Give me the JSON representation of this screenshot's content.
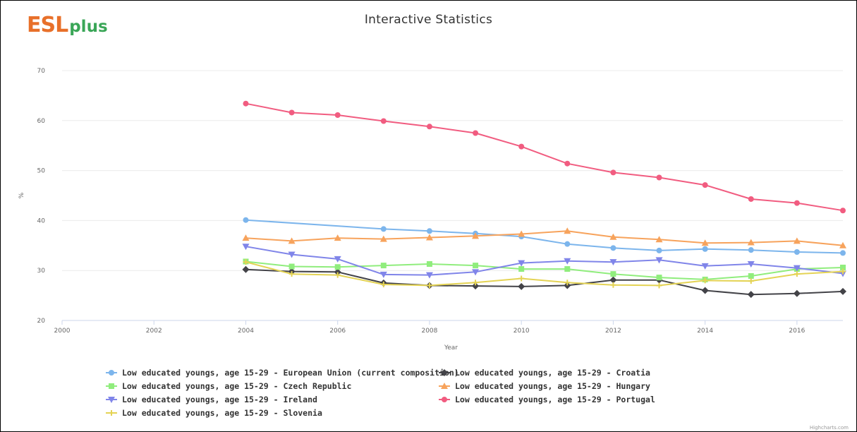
{
  "logo": {
    "main": "ESL",
    "sub": "plus"
  },
  "credits": "Highcharts.com",
  "chart_data": {
    "type": "line",
    "title": "Interactive Statistics",
    "xlabel": "Year",
    "ylabel": "%",
    "xlim": [
      2000,
      2017
    ],
    "ylim": [
      20,
      70
    ],
    "x_ticks": [
      "2000",
      "2002",
      "2004",
      "2006",
      "2008",
      "2010",
      "2012",
      "2014",
      "2016"
    ],
    "y_ticks": [
      "20",
      "30",
      "40",
      "50",
      "60",
      "70"
    ],
    "grid": true,
    "legend_position": "bottom",
    "x": [
      2004,
      2005,
      2006,
      2007,
      2008,
      2009,
      2010,
      2011,
      2012,
      2013,
      2014,
      2015,
      2016,
      2017
    ],
    "series": [
      {
        "name": "Low educated youngs, age 15-29 - European Union (current composition)",
        "color": "#7cb5ec",
        "marker": "circle",
        "values": [
          40.1,
          null,
          null,
          38.3,
          37.9,
          37.4,
          36.8,
          35.3,
          34.5,
          34.0,
          34.3,
          34.1,
          33.7,
          33.5
        ]
      },
      {
        "name": "Low educated youngs, age 15-29 - Croatia",
        "color": "#434348",
        "marker": "diamond",
        "values": [
          30.2,
          29.8,
          29.7,
          27.5,
          27.0,
          26.9,
          26.8,
          27.0,
          28.1,
          28.1,
          26.0,
          25.2,
          25.4,
          25.8
        ]
      },
      {
        "name": "Low educated youngs, age 15-29 - Czech Republic",
        "color": "#90ed7d",
        "marker": "square",
        "values": [
          31.8,
          30.8,
          30.7,
          31.0,
          31.3,
          31.0,
          30.3,
          30.3,
          29.3,
          28.6,
          28.2,
          28.9,
          30.3,
          30.6
        ]
      },
      {
        "name": "Low educated youngs, age 15-29 - Hungary",
        "color": "#f7a35c",
        "marker": "triangle",
        "values": [
          36.5,
          35.9,
          36.5,
          36.3,
          36.6,
          36.9,
          37.3,
          37.9,
          36.7,
          36.2,
          35.5,
          35.6,
          35.9,
          35.0
        ]
      },
      {
        "name": "Low educated youngs, age 15-29 - Ireland",
        "color": "#8085e9",
        "marker": "triangle-down",
        "values": [
          34.8,
          33.2,
          32.3,
          29.2,
          29.1,
          29.7,
          31.5,
          31.9,
          31.7,
          32.1,
          30.9,
          31.3,
          30.5,
          29.4
        ]
      },
      {
        "name": "Low educated youngs, age 15-29 - Portugal",
        "color": "#f15c80",
        "marker": "circle",
        "values": [
          63.4,
          61.6,
          61.1,
          59.9,
          58.8,
          57.5,
          54.8,
          51.4,
          49.6,
          48.6,
          47.1,
          44.3,
          43.5,
          42.0
        ]
      },
      {
        "name": "Low educated youngs, age 15-29 - Slovenia",
        "color": "#e4d354",
        "marker": "cross",
        "values": [
          31.7,
          29.3,
          29.1,
          27.2,
          27.0,
          27.6,
          28.4,
          27.6,
          27.1,
          27.0,
          28.0,
          27.9,
          29.3,
          29.8
        ]
      }
    ]
  }
}
